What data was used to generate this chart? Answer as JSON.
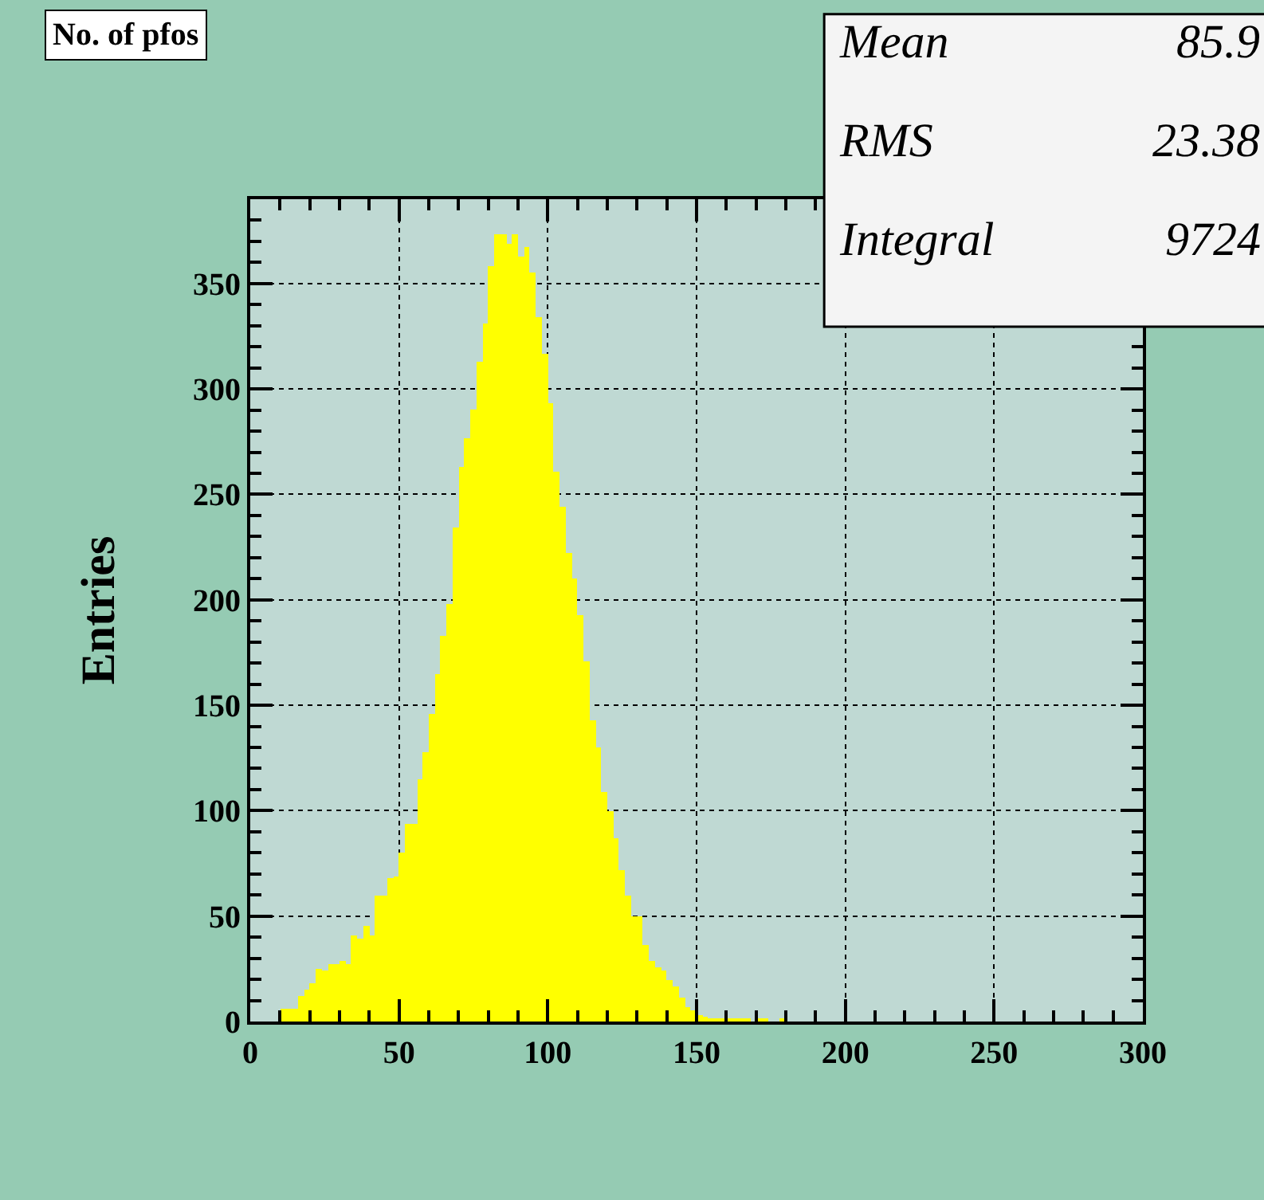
{
  "chart_data": {
    "type": "histogram",
    "title": "No. of pfos",
    "ylabel": "Entries",
    "annotations": [
      "Mean",
      "85.9",
      "RMS",
      "23.38",
      "Integral",
      "9724"
    ],
    "bins": [
      10,
      12,
      14,
      16,
      18,
      20,
      22,
      24,
      26,
      28,
      30,
      32,
      34,
      36,
      38,
      40,
      42,
      44,
      46,
      48,
      50,
      52,
      54,
      56,
      58,
      60,
      62,
      64,
      66,
      68,
      70,
      72,
      74,
      76,
      78,
      80,
      82,
      84,
      86,
      88,
      90,
      92,
      94,
      96,
      98,
      100,
      102,
      104,
      106,
      108,
      110,
      112,
      114,
      116,
      118,
      120,
      122,
      124,
      126,
      128,
      130,
      132,
      134,
      136,
      138,
      140,
      142,
      144,
      146,
      148,
      150,
      152,
      154,
      156,
      158,
      160,
      162,
      164,
      166,
      168,
      170,
      172,
      174,
      176,
      178,
      180
    ],
    "values": [
      6,
      6,
      6,
      12,
      15,
      18,
      25,
      24,
      27,
      27,
      29,
      27,
      41,
      39,
      45,
      41,
      60,
      60,
      68,
      69,
      80,
      94,
      94,
      115,
      128,
      146,
      165,
      183,
      198,
      234,
      263,
      277,
      290,
      313,
      331,
      358,
      373,
      373,
      369,
      373,
      363,
      367,
      355,
      334,
      317,
      293,
      261,
      244,
      222,
      210,
      193,
      171,
      143,
      130,
      109,
      100,
      87,
      72,
      60,
      50,
      50,
      36,
      29,
      26,
      24,
      20,
      17,
      11,
      7,
      5,
      3,
      2,
      1,
      1,
      1,
      1,
      1,
      1,
      1,
      0,
      1,
      1,
      0,
      0,
      1
    ],
    "color": "#ffff00",
    "xlim": [
      0,
      300
    ],
    "xticks": [
      0,
      50,
      100,
      150,
      200,
      250,
      300
    ],
    "ylim": [
      0,
      390
    ],
    "yticks": [
      0,
      50,
      100,
      150,
      200,
      250,
      300,
      350
    ],
    "grid": true
  }
}
